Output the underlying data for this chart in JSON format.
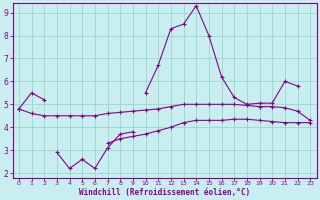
{
  "xlabel": "Windchill (Refroidissement éolien,°C)",
  "bg_color": "#c8eef0",
  "grid_color": "#98d8d0",
  "line_color": "#880088",
  "x": [
    0,
    1,
    2,
    3,
    4,
    5,
    6,
    7,
    8,
    9,
    10,
    11,
    12,
    13,
    14,
    15,
    16,
    17,
    18,
    19,
    20,
    21,
    22,
    23
  ],
  "line_upper_left": {
    "x": [
      0,
      1,
      2
    ],
    "y": [
      4.8,
      5.5,
      5.2
    ]
  },
  "line_mid_flat": {
    "x": [
      0,
      1,
      2,
      3,
      4,
      5,
      6,
      7,
      8,
      9,
      10,
      11,
      12,
      13,
      14,
      15,
      16,
      17,
      18,
      19,
      20,
      21,
      22,
      23
    ],
    "y": [
      4.8,
      4.6,
      4.5,
      4.5,
      4.5,
      4.5,
      4.5,
      4.6,
      4.65,
      4.7,
      4.75,
      4.8,
      4.9,
      5.0,
      5.0,
      5.0,
      5.0,
      5.0,
      4.95,
      4.9,
      4.9,
      4.85,
      4.7,
      4.3
    ]
  },
  "line_lower_left": {
    "x": [
      3,
      4,
      5,
      6,
      7,
      8,
      9
    ],
    "y": [
      2.9,
      2.2,
      2.6,
      2.2,
      3.1,
      3.7,
      3.8
    ]
  },
  "line_lower_right": {
    "x": [
      7,
      8,
      9,
      10,
      11,
      12,
      13,
      14,
      15,
      16,
      17,
      18,
      19,
      20,
      21,
      22,
      23
    ],
    "y": [
      3.3,
      3.5,
      3.6,
      3.7,
      3.85,
      4.0,
      4.2,
      4.3,
      4.3,
      4.3,
      4.35,
      4.35,
      4.3,
      4.25,
      4.2,
      4.2,
      4.2
    ]
  },
  "line_peak": {
    "x": [
      10,
      11,
      12,
      13,
      14,
      15,
      16,
      17,
      18,
      19,
      20,
      21,
      22
    ],
    "y": [
      5.5,
      6.7,
      8.3,
      8.5,
      9.3,
      8.0,
      6.2,
      5.3,
      5.0,
      5.05,
      5.05,
      6.0,
      5.8
    ]
  },
  "ylim": [
    1.8,
    9.4
  ],
  "xlim": [
    -0.5,
    23.5
  ],
  "yticks": [
    2,
    3,
    4,
    5,
    6,
    7,
    8,
    9
  ],
  "xticks": [
    0,
    1,
    2,
    3,
    4,
    5,
    6,
    7,
    8,
    9,
    10,
    11,
    12,
    13,
    14,
    15,
    16,
    17,
    18,
    19,
    20,
    21,
    22,
    23
  ]
}
